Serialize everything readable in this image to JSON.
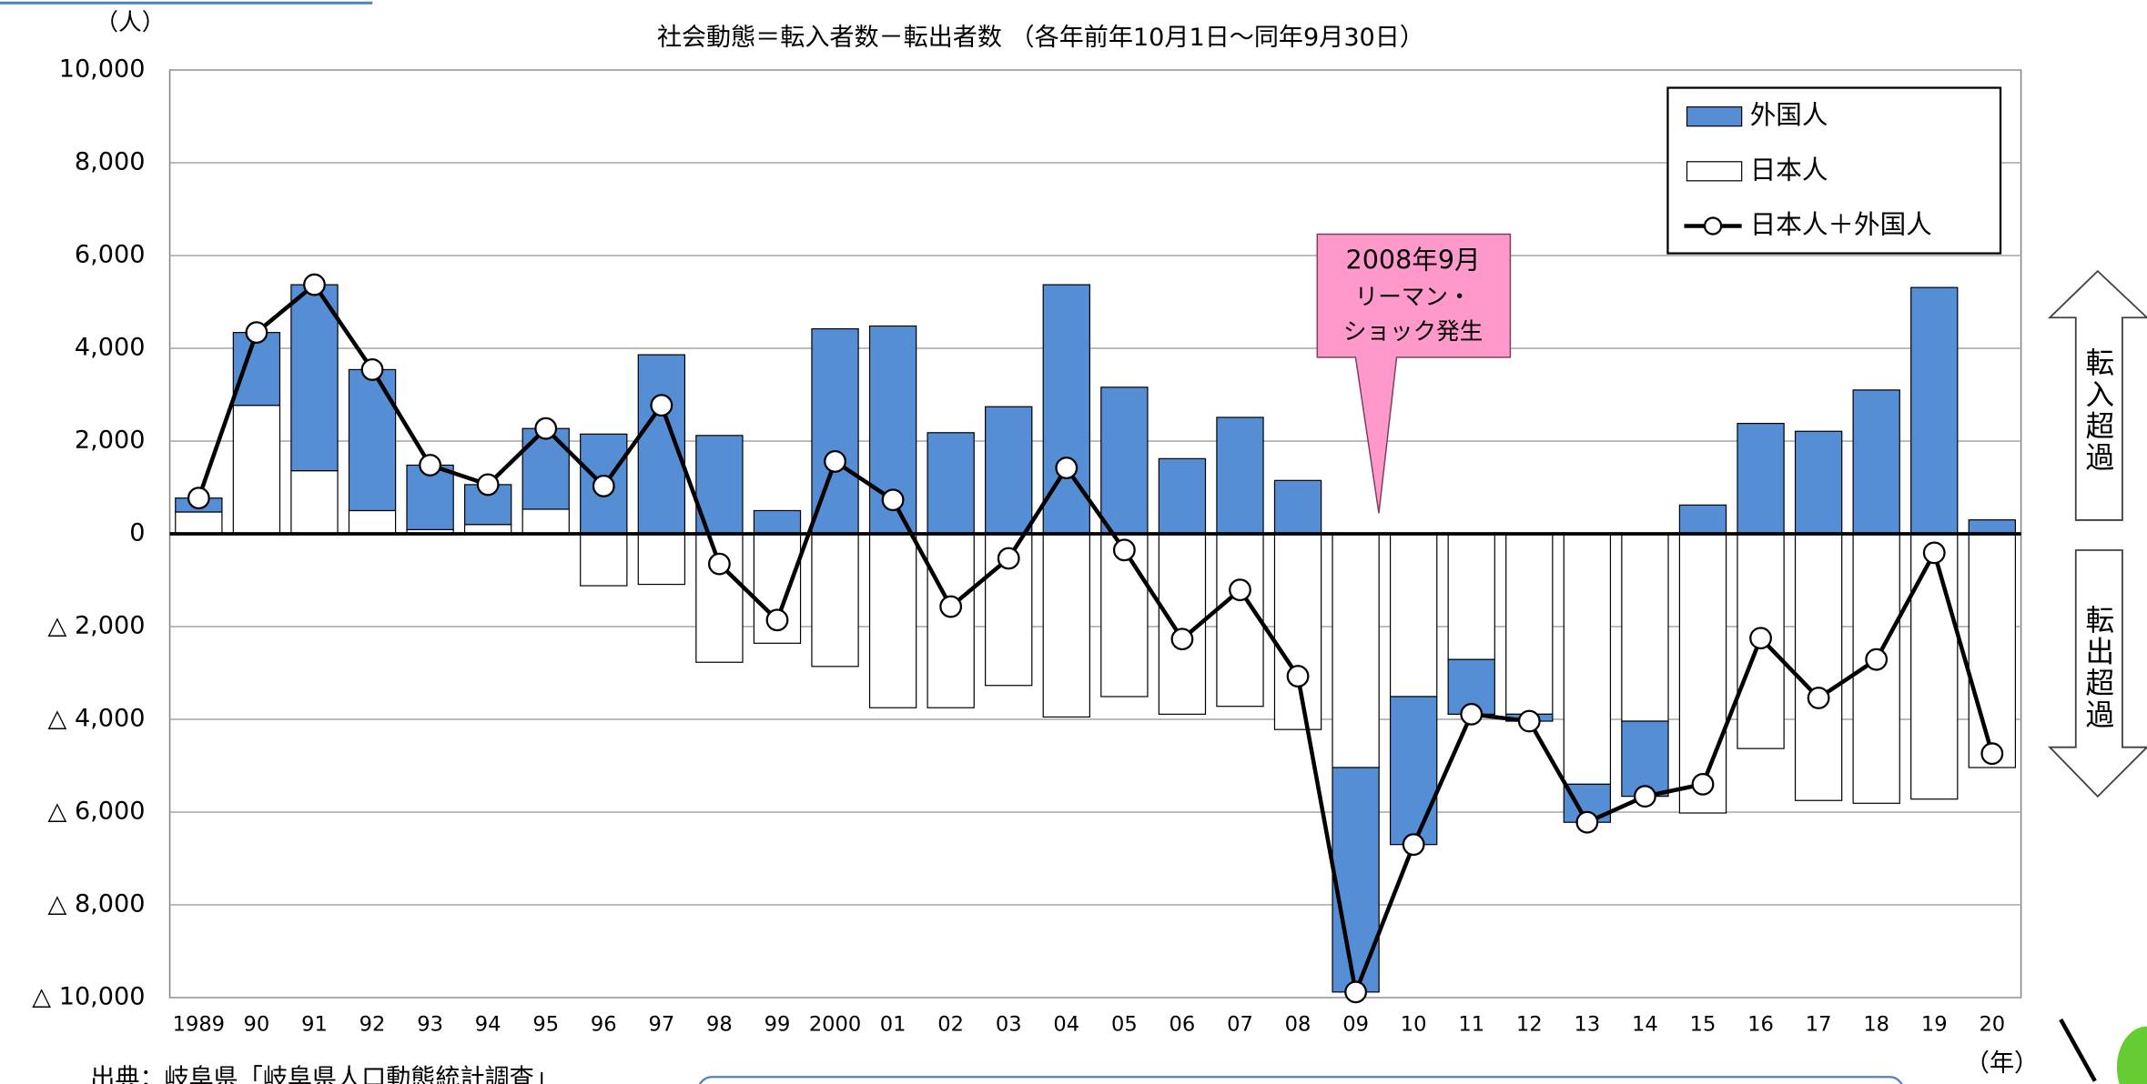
{
  "chart_data": {
    "type": "bar",
    "title": "社会動態＝転入者数－転出者数 （各年前年10月1日～同年9月30日）",
    "y_unit": "（人）",
    "x_unit": "（年）",
    "categories": [
      "1989",
      "90",
      "91",
      "92",
      "93",
      "94",
      "95",
      "96",
      "97",
      "98",
      "99",
      "2000",
      "01",
      "02",
      "03",
      "04",
      "05",
      "06",
      "07",
      "08",
      "09",
      "10",
      "11",
      "12",
      "13",
      "14",
      "15",
      "16",
      "17",
      "18",
      "19",
      "20"
    ],
    "series": [
      {
        "name": "外国人",
        "color": "#558ed5",
        "values": [
          300,
          1570,
          4010,
          3040,
          1390,
          860,
          1740,
          2150,
          3860,
          2120,
          500,
          4420,
          4480,
          2180,
          2740,
          5370,
          3160,
          1620,
          2510,
          1150,
          -4840,
          -3190,
          -1180,
          -150,
          -820,
          -1620,
          620,
          2380,
          2210,
          3100,
          5310,
          300
        ]
      },
      {
        "name": "日本人",
        "color": "#ffffff",
        "values": [
          470,
          2770,
          1360,
          500,
          90,
          200,
          530,
          -1120,
          -1090,
          -2770,
          -2360,
          -2860,
          -3750,
          -3750,
          -3270,
          -3950,
          -3510,
          -3890,
          -3720,
          -4220,
          -5040,
          -3510,
          -2710,
          -3890,
          -5400,
          -4040,
          -6020,
          -4630,
          -5750,
          -5810,
          -5720,
          -5040
        ]
      },
      {
        "name": "日本人＋外国人",
        "color": "#000000",
        "type": "line",
        "values": [
          770,
          4340,
          5370,
          3540,
          1480,
          1060,
          2270,
          1030,
          2770,
          -650,
          -1860,
          1560,
          730,
          -1570,
          -530,
          1420,
          -350,
          -2270,
          -1210,
          -3070,
          -9880,
          -6700,
          -3890,
          -4040,
          -6220,
          -5660,
          -5400,
          -2250,
          -3540,
          -2710,
          -410,
          -4740
        ]
      }
    ],
    "stacked": true,
    "ylim": [
      -10000,
      10000
    ],
    "yticks": [
      {
        "value": 10000,
        "label": "10,000"
      },
      {
        "value": 8000,
        "label": "8,000"
      },
      {
        "value": 6000,
        "label": "6,000"
      },
      {
        "value": 4000,
        "label": "4,000"
      },
      {
        "value": 2000,
        "label": "2,000"
      },
      0,
      {
        "value": -2000,
        "label": "△ 2,000"
      },
      {
        "value": -4000,
        "label": "△ 4,000"
      },
      {
        "value": -6000,
        "label": "△ 6,000"
      },
      {
        "value": -8000,
        "label": "△ 8,000"
      },
      {
        "value": -10000,
        "label": "△ 10,000"
      }
    ],
    "grid": true,
    "legend": "top-right",
    "annotation": [
      "2008年9月",
      "リーマン・",
      "ショック発生"
    ],
    "side_labels": [
      "転入超過",
      "転出超過"
    ],
    "source": "出典：岐阜県「岐阜県人口動態統計調査」"
  }
}
